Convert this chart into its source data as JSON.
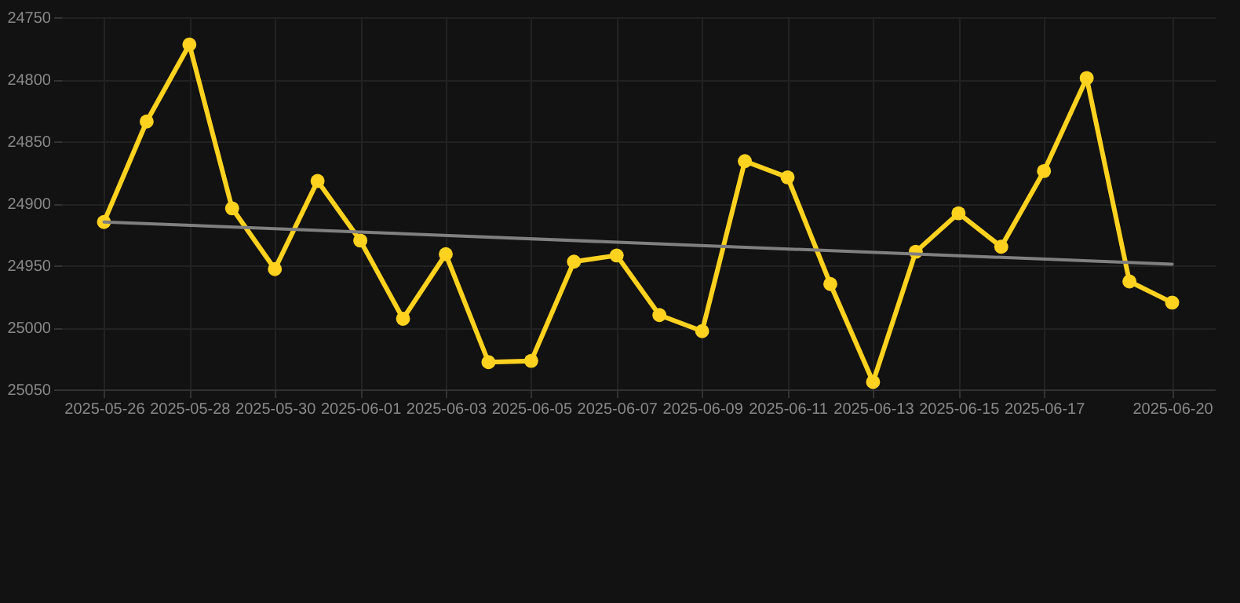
{
  "chart_data": {
    "type": "line",
    "x": [
      "2025-05-26",
      "2025-05-27",
      "2025-05-28",
      "2025-05-29",
      "2025-05-30",
      "2025-05-31",
      "2025-06-01",
      "2025-06-02",
      "2025-06-03",
      "2025-06-04",
      "2025-06-05",
      "2025-06-06",
      "2025-06-07",
      "2025-06-08",
      "2025-06-09",
      "2025-06-10",
      "2025-06-11",
      "2025-06-12",
      "2025-06-13",
      "2025-06-14",
      "2025-06-15",
      "2025-06-16",
      "2025-06-17",
      "2025-06-18",
      "2025-06-19",
      "2025-06-20"
    ],
    "series": [
      {
        "color": "#ffd21f",
        "values": [
          24915,
          24834,
          24772,
          24904,
          24953,
          24882,
          24930,
          24993,
          24941,
          25028,
          25027,
          24947,
          24942,
          24990,
          25003,
          24866,
          24879,
          24965,
          25044,
          24939,
          24908,
          24935,
          24874,
          24799,
          24963,
          24980
        ]
      },
      {
        "type": "line",
        "color": "#808080",
        "marker": "none",
        "x": [
          "2025-05-26",
          "2025-06-20"
        ],
        "values": [
          24915,
          24949
        ]
      }
    ],
    "ylim": [
      25050,
      24750
    ],
    "yticks": [
      24750,
      24800,
      24850,
      24900,
      24950,
      25000,
      25050
    ],
    "xlim": [
      "2025-05-25",
      "2025-06-21"
    ],
    "xticks": [
      "2025-05-26",
      "2025-05-28",
      "2025-05-30",
      "2025-06-01",
      "2025-06-03",
      "2025-06-05",
      "2025-06-07",
      "2025-06-09",
      "2025-06-11",
      "2025-06-13",
      "2025-06-15",
      "2025-06-17",
      "2025-06-20"
    ],
    "grid": true,
    "marker": "circle",
    "line_style": "solid"
  }
}
